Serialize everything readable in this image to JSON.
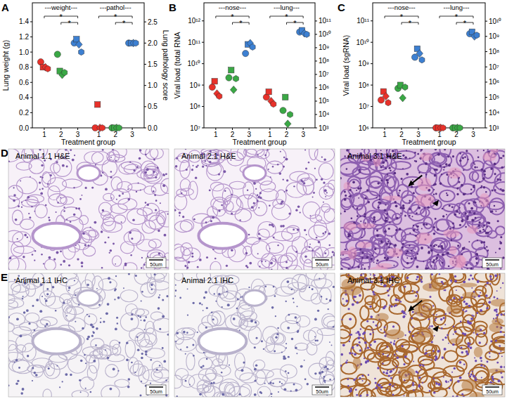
{
  "chart_data": [
    {
      "type": "scatter",
      "title": "A",
      "xlabel": "Treatment group",
      "ylabel": "Lung weight (g)",
      "y2label": "Lung pathology score",
      "ylim": [
        0,
        1.65
      ],
      "yticks": [
        {
          "value": 0,
          "label": "0.0"
        },
        {
          "value": 0.2,
          "label": "0.2"
        },
        {
          "value": 0.4,
          "label": "0.4"
        },
        {
          "value": 0.6,
          "label": "0.6"
        },
        {
          "value": 0.8,
          "label": "0.8"
        },
        {
          "value": 1.0,
          "label": "1.0"
        },
        {
          "value": 1.2,
          "label": "1.2"
        },
        {
          "value": 1.4,
          "label": "1.4"
        }
      ],
      "y2lim": [
        0,
        2.95
      ],
      "y2ticks": [
        {
          "value": 0,
          "label": "0.0"
        },
        {
          "value": 0.5,
          "label": "0.5"
        },
        {
          "value": 1.0,
          "label": "1.0"
        },
        {
          "value": 1.5,
          "label": "1.5"
        },
        {
          "value": 2.0,
          "label": "2.0"
        },
        {
          "value": 2.5,
          "label": "2.5"
        }
      ],
      "subplots": [
        {
          "subtitle": "---weight---",
          "axis": "y",
          "xlim": [
            0.5,
            3.5
          ],
          "xticks": [
            1,
            2,
            3
          ],
          "significance": [
            {
              "from": 1,
              "to": 3,
              "label": "*"
            },
            {
              "from": 2,
              "to": 3,
              "label": "*"
            }
          ],
          "series": [
            {
              "marker": "circle",
              "x": [
                1,
                2,
                3
              ],
              "values": [
                0.87,
                0.97,
                1.12
              ],
              "colors": [
                "#e8312a",
                "#3aa845",
                "#3d80d2"
              ]
            },
            {
              "marker": "square",
              "x": [
                1,
                2,
                3
              ],
              "values": [
                0.8,
                0.75,
                1.17
              ],
              "colors": [
                "#e8312a",
                "#3aa845",
                "#3d80d2"
              ]
            },
            {
              "marker": "diamond",
              "x": [
                1,
                2,
                3
              ],
              "values": [
                0.8,
                0.7,
                1.1
              ],
              "colors": [
                "#e8312a",
                "#3aa845",
                "#3d80d2"
              ]
            },
            {
              "marker": "hexagon",
              "x": [
                1,
                2,
                3
              ],
              "values": [
                0.78,
                0.73,
                1.0
              ],
              "colors": [
                "#e8312a",
                "#3aa845",
                "#3d80d2"
              ]
            }
          ]
        },
        {
          "subtitle": "---pathol---",
          "axis": "y2",
          "xlim": [
            0.5,
            3.5
          ],
          "xticks": [
            1,
            2,
            3
          ],
          "significance": [
            {
              "from": 1,
              "to": 3,
              "label": "*"
            },
            {
              "from": 2,
              "to": 3,
              "label": "*"
            }
          ],
          "series": [
            {
              "marker": "circle",
              "x": [
                1,
                2,
                3
              ],
              "values": [
                0,
                0,
                2.0
              ],
              "colors": [
                "#e8312a",
                "#3aa845",
                "#3d80d2"
              ]
            },
            {
              "marker": "square",
              "x": [
                1,
                2,
                3
              ],
              "values": [
                0.55,
                0,
                2.0
              ],
              "colors": [
                "#e8312a",
                "#3aa845",
                "#3d80d2"
              ]
            },
            {
              "marker": "diamond",
              "x": [
                1,
                2,
                3
              ],
              "values": [
                0,
                0,
                2.0
              ],
              "colors": [
                "#e8312a",
                "#3aa845",
                "#3d80d2"
              ]
            },
            {
              "marker": "hexagon",
              "x": [
                1,
                2,
                3
              ],
              "values": [
                0,
                0,
                2.0
              ],
              "colors": [
                "#e8312a",
                "#3aa845",
                "#3d80d2"
              ]
            }
          ]
        }
      ]
    },
    {
      "type": "scatter",
      "title": "B",
      "xlabel": "Treatment group",
      "ylabel": "Viral load (total RNA",
      "log": "y",
      "ylim": [
        10000000.0,
        7000000000000.0
      ],
      "yticks": [
        {
          "value": 10000000.0,
          "label": "10⁷"
        },
        {
          "value": 100000000.0,
          "label": "10⁸"
        },
        {
          "value": 1000000000.0,
          "label": "10⁹"
        },
        {
          "value": 10000000000.0,
          "label": "10¹⁰"
        },
        {
          "value": 100000000000.0,
          "label": "10¹¹"
        },
        {
          "value": 1000000000000.0,
          "label": "10¹²"
        }
      ],
      "y2lim": [
        1000.0,
        2300000000000.0
      ],
      "y2ticks": [
        {
          "value": 1000.0,
          "label": "10³"
        },
        {
          "value": 10000.0,
          "label": "10⁴"
        },
        {
          "value": 100000.0,
          "label": "10⁵"
        },
        {
          "value": 1000000.0,
          "label": "10⁶"
        },
        {
          "value": 10000000.0,
          "label": "10⁷"
        },
        {
          "value": 100000000.0,
          "label": "10⁸"
        },
        {
          "value": 1000000000.0,
          "label": "10⁹"
        },
        {
          "value": 10000000000.0,
          "label": "10¹⁰"
        },
        {
          "value": 100000000000.0,
          "label": "10¹¹"
        }
      ],
      "subplots": [
        {
          "subtitle": "---nose---",
          "axis": "y",
          "xlim": [
            0.5,
            3.5
          ],
          "xticks": [
            1,
            2,
            3
          ],
          "significance": [
            {
              "from": 1,
              "to": 3,
              "label": "*"
            },
            {
              "from": 2,
              "to": 3,
              "label": "*"
            }
          ],
          "series": [
            {
              "marker": "circle",
              "x": [
                1,
                2,
                3
              ],
              "values": [
                800000000.0,
                2200000000.0,
                30000000000.0
              ],
              "colors": [
                "#e8312a",
                "#3aa845",
                "#3d80d2"
              ]
            },
            {
              "marker": "square",
              "x": [
                1,
                2,
                3
              ],
              "values": [
                1500000000.0,
                5000000000.0,
                80000000000.0
              ],
              "colors": [
                "#e8312a",
                "#3aa845",
                "#3d80d2"
              ]
            },
            {
              "marker": "diamond",
              "x": [
                1,
                2,
                3
              ],
              "values": [
                400000000.0,
                600000000.0,
                90000000000.0
              ],
              "colors": [
                "#e8312a",
                "#3aa845",
                "#3d80d2"
              ]
            },
            {
              "marker": "hexagon",
              "x": [
                1,
                2,
                3
              ],
              "values": [
                300000000.0,
                2000000000.0,
                60000000000.0
              ],
              "colors": [
                "#e8312a",
                "#3aa845",
                "#3d80d2"
              ]
            }
          ]
        },
        {
          "subtitle": "---lung---",
          "axis": "y2",
          "xlim": [
            0.5,
            3.5
          ],
          "xticks": [
            1,
            2,
            3
          ],
          "significance": [
            {
              "from": 1,
              "to": 3,
              "label": "*"
            },
            {
              "from": 2,
              "to": 3,
              "label": "*"
            }
          ],
          "series": [
            {
              "marker": "circle",
              "x": [
                1,
                2,
                3
              ],
              "values": [
                200000.0,
                20000.0,
                15000000000.0
              ],
              "colors": [
                "#e8312a",
                "#3aa845",
                "#3d80d2"
              ]
            },
            {
              "marker": "square",
              "x": [
                1,
                2,
                3
              ],
              "values": [
                500000.0,
                200000.0,
                20000000000.0
              ],
              "colors": [
                "#e8312a",
                "#3aa845",
                "#3d80d2"
              ]
            },
            {
              "marker": "diamond",
              "x": [
                1,
                2,
                3
              ],
              "values": [
                100000.0,
                2000.0,
                12000000000.0
              ],
              "colors": [
                "#e8312a",
                "#3aa845",
                "#3d80d2"
              ]
            },
            {
              "marker": "hexagon",
              "x": [
                1,
                2,
                3
              ],
              "values": [
                60000.0,
                10000.0,
                10000000000.0
              ],
              "colors": [
                "#e8312a",
                "#3aa845",
                "#3d80d2"
              ]
            }
          ]
        }
      ]
    },
    {
      "type": "scatter",
      "title": "C",
      "xlabel": "Treatment group",
      "ylabel": "Viral load (sgRNA)",
      "log": "y",
      "ylim": [
        1000000.0,
        700000000000.0
      ],
      "yticks": [
        {
          "value": 1000000.0,
          "label": "10⁶"
        },
        {
          "value": 10000000.0,
          "label": "10⁷"
        },
        {
          "value": 100000000.0,
          "label": "10⁸"
        },
        {
          "value": 1000000000.0,
          "label": "10⁹"
        },
        {
          "value": 10000000000.0,
          "label": "10¹⁰"
        },
        {
          "value": 100000000000.0,
          "label": "10¹¹"
        }
      ],
      "y2lim": [
        1000.0,
        160000000000.0
      ],
      "y2ticks": [
        {
          "value": 1000.0,
          "label": "10³"
        },
        {
          "value": 10000.0,
          "label": "10⁴"
        },
        {
          "value": 100000.0,
          "label": "10⁵"
        },
        {
          "value": 1000000.0,
          "label": "10⁶"
        },
        {
          "value": 10000000.0,
          "label": "10⁷"
        },
        {
          "value": 100000000.0,
          "label": "10⁸"
        },
        {
          "value": 1000000000.0,
          "label": "10⁹"
        },
        {
          "value": 10000000000.0,
          "label": "10¹⁰"
        }
      ],
      "subplots": [
        {
          "subtitle": "---nose---",
          "axis": "y",
          "xlim": [
            0.5,
            3.5
          ],
          "xticks": [
            1,
            2,
            3
          ],
          "significance": [
            {
              "from": 1,
              "to": 3,
              "label": "*"
            },
            {
              "from": 2,
              "to": 3,
              "label": "*"
            }
          ],
          "series": [
            {
              "marker": "circle",
              "x": [
                1,
                2,
                3
              ],
              "values": [
                20000000.0,
                70000000.0,
                2000000000.0
              ],
              "colors": [
                "#e8312a",
                "#3aa845",
                "#3d80d2"
              ]
            },
            {
              "marker": "square",
              "x": [
                1,
                2,
                3
              ],
              "values": [
                50000000.0,
                100000000.0,
                5000000000.0
              ],
              "colors": [
                "#e8312a",
                "#3aa845",
                "#3d80d2"
              ]
            },
            {
              "marker": "diamond",
              "x": [
                1,
                2,
                3
              ],
              "values": [
                30000000.0,
                25000000.0,
                3000000000.0
              ],
              "colors": [
                "#e8312a",
                "#3aa845",
                "#3d80d2"
              ]
            },
            {
              "marker": "hexagon",
              "x": [
                1,
                2,
                3
              ],
              "values": [
                15000000.0,
                80000000.0,
                1500000000.0
              ],
              "colors": [
                "#e8312a",
                "#3aa845",
                "#3d80d2"
              ]
            }
          ]
        },
        {
          "subtitle": "---lung---",
          "axis": "y2",
          "xlim": [
            0.5,
            3.5
          ],
          "xticks": [
            1,
            2,
            3
          ],
          "significance": [
            {
              "from": 1,
              "to": 3,
              "label": "*"
            },
            {
              "from": 2,
              "to": 3,
              "label": "*"
            }
          ],
          "series": [
            {
              "marker": "circle",
              "x": [
                1,
                2,
                3
              ],
              "values": [
                1000.0,
                1000.0,
                1500000000.0
              ],
              "colors": [
                "#e8312a",
                "#3aa845",
                "#3d80d2"
              ]
            },
            {
              "marker": "square",
              "x": [
                1,
                2,
                3
              ],
              "values": [
                1000.0,
                1000.0,
                2000000000.0
              ],
              "colors": [
                "#e8312a",
                "#3aa845",
                "#3d80d2"
              ]
            },
            {
              "marker": "diamond",
              "x": [
                1,
                2,
                3
              ],
              "values": [
                1000.0,
                1000.0,
                1000000000.0
              ],
              "colors": [
                "#e8312a",
                "#3aa845",
                "#3d80d2"
              ]
            },
            {
              "marker": "hexagon",
              "x": [
                1,
                2,
                3
              ],
              "values": [
                1000.0,
                1000.0,
                1200000000.0
              ],
              "colors": [
                "#e8312a",
                "#3aa845",
                "#3d80d2"
              ]
            }
          ]
        }
      ]
    }
  ],
  "images": [
    {
      "letter": "D",
      "items": [
        {
          "caption": "Animal 1.1 H&E",
          "scale_bar": "50um"
        },
        {
          "caption": "Animal 2.1 H&E",
          "scale_bar": "50um"
        },
        {
          "caption": "Animal 3.1 H&E",
          "scale_bar": "50um"
        }
      ]
    },
    {
      "letter": "E",
      "items": [
        {
          "caption": "Animal 1.1 IHC",
          "scale_bar": "50um"
        },
        {
          "caption": "Animal 2.1 IHC",
          "scale_bar": "50um"
        },
        {
          "caption": "Animal 3.1 IHC",
          "scale_bar": "50um"
        }
      ]
    }
  ]
}
